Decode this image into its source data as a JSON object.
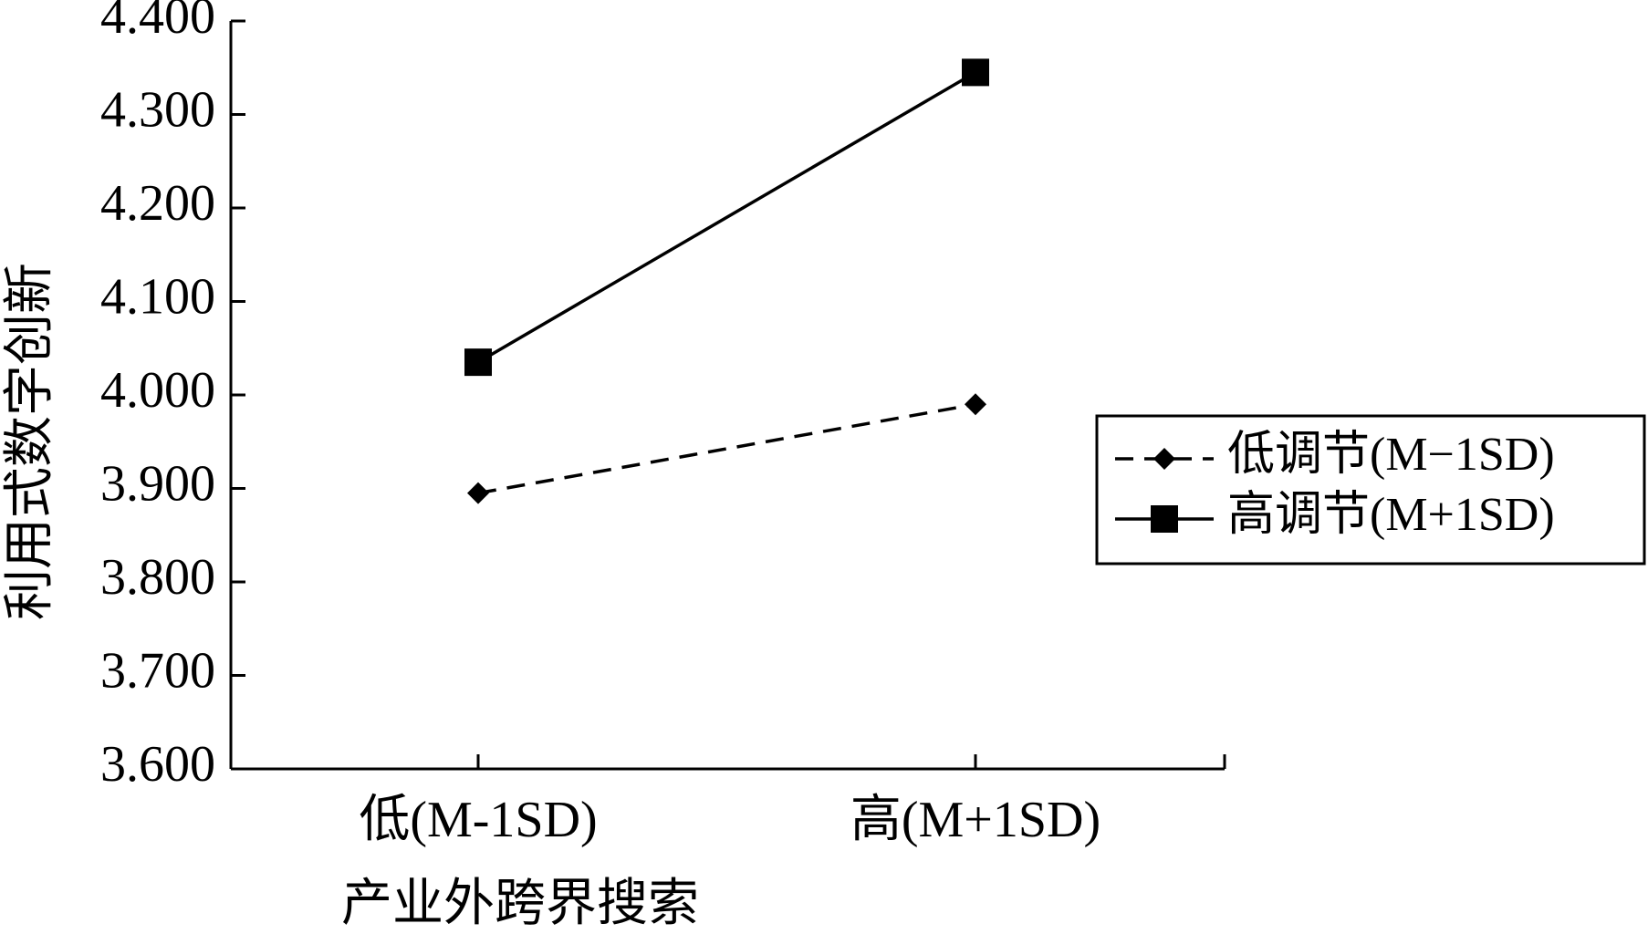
{
  "chart_data": {
    "type": "line",
    "x_label": "产业外跨界搜索",
    "y_label": "利用式数字创新",
    "categories": [
      "低(M-1SD)",
      "高(M+1SD)"
    ],
    "series": [
      {
        "name": "低调节(M−1SD)",
        "color": "#000000",
        "line_style": "dashed",
        "marker": "diamond",
        "values": [
          3.895,
          3.99
        ]
      },
      {
        "name": "高调节(M+1SD)",
        "color": "#000000",
        "line_style": "solid",
        "marker": "square",
        "values": [
          4.035,
          4.345
        ]
      }
    ],
    "ylim": [
      3.6,
      4.4
    ],
    "yticks": [
      {
        "value": 3.6,
        "label": "3.600"
      },
      {
        "value": 3.7,
        "label": "3.700"
      },
      {
        "value": 3.8,
        "label": "3.800"
      },
      {
        "value": 3.9,
        "label": "3.900"
      },
      {
        "value": 4.0,
        "label": "4.000"
      },
      {
        "value": 4.1,
        "label": "4.100"
      },
      {
        "value": 4.2,
        "label": "4.200"
      },
      {
        "value": 4.3,
        "label": "4.300"
      },
      {
        "value": 4.4,
        "label": "4.400"
      }
    ],
    "legend": "right"
  }
}
